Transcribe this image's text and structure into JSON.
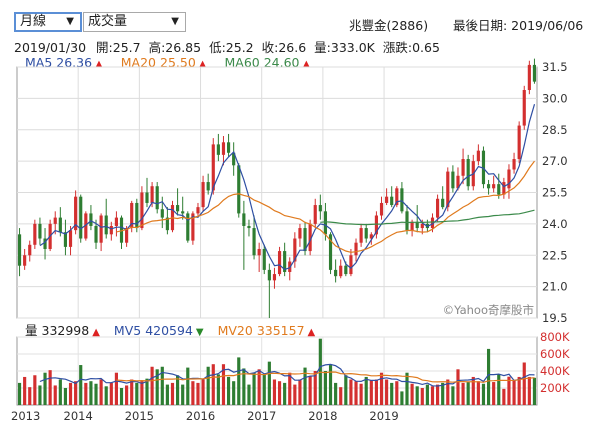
{
  "controls": {
    "period_label": "月線",
    "indicator_label": "成交量"
  },
  "header": {
    "stock": "兆豐金(2886)",
    "last_date_label": "最後日期: 2019/06/06"
  },
  "quote": {
    "date": "2019/01/30",
    "open_label": "開:",
    "open": "25.7",
    "high_label": "高:",
    "high": "26.85",
    "low_label": "低:",
    "low": "25.2",
    "close_label": "收:",
    "close": "26.6",
    "vol_label": "量:",
    "volume": "333.0K",
    "chg_label": "漲跌:",
    "change": "0.65"
  },
  "ma_legend": [
    {
      "label": "MA5",
      "value": "26.36",
      "color": "#2f4fa3",
      "dir": "up"
    },
    {
      "label": "MA20",
      "value": "25.50",
      "color": "#e07b1f",
      "dir": "up"
    },
    {
      "label": "MA60",
      "value": "24.60",
      "color": "#3b8a4a",
      "dir": "up"
    }
  ],
  "vol_legend": [
    {
      "label": "量",
      "value": "332998",
      "color": "#222222",
      "dir": "up"
    },
    {
      "label": "MV5",
      "value": "420594",
      "color": "#2f4fa3",
      "dir": "down"
    },
    {
      "label": "MV20",
      "value": "335157",
      "color": "#e07b1f",
      "dir": "up"
    }
  ],
  "watermark": "©Yahoo奇摩股市",
  "colors": {
    "up": "#d32f2f",
    "down": "#2e7d32",
    "ma5": "#2f4fa3",
    "ma20": "#e07b1f",
    "ma60": "#3b8a4a"
  },
  "chart_data": {
    "type": "candlestick",
    "price_axis": {
      "min": 19.5,
      "max": 31.5,
      "ticks": [
        "19.5",
        "21.0",
        "22.5",
        "24.0",
        "25.5",
        "27.0",
        "28.5",
        "30.0",
        "31.5"
      ]
    },
    "volume_axis": {
      "min": 0,
      "max": 800000,
      "ticks": [
        "200K",
        "400K",
        "600K",
        "800K"
      ]
    },
    "x_axis_labels": [
      "2013",
      "2014",
      "2015",
      "2016",
      "2017",
      "2018",
      "2019"
    ],
    "grid": true,
    "months_start": "2013-01",
    "ohlc": [
      [
        23.5,
        23.8,
        21.5,
        22.0
      ],
      [
        22.0,
        22.8,
        21.8,
        22.5
      ],
      [
        22.5,
        23.2,
        22.2,
        23.0
      ],
      [
        23.0,
        24.2,
        22.8,
        24.0
      ],
      [
        24.0,
        24.3,
        23.0,
        23.3
      ],
      [
        23.3,
        23.8,
        22.3,
        22.8
      ],
      [
        22.8,
        24.2,
        22.7,
        24.0
      ],
      [
        24.0,
        24.6,
        23.5,
        24.3
      ],
      [
        24.3,
        24.8,
        23.4,
        23.6
      ],
      [
        23.6,
        24.2,
        22.5,
        22.9
      ],
      [
        22.9,
        23.9,
        22.5,
        23.7
      ],
      [
        23.7,
        25.6,
        23.5,
        25.3
      ],
      [
        25.3,
        25.4,
        23.1,
        23.3
      ],
      [
        23.3,
        24.6,
        23.2,
        24.5
      ],
      [
        24.5,
        24.9,
        23.7,
        23.9
      ],
      [
        23.9,
        24.2,
        22.8,
        23.1
      ],
      [
        23.1,
        24.5,
        22.7,
        24.4
      ],
      [
        24.4,
        25.2,
        23.3,
        23.5
      ],
      [
        23.5,
        24.1,
        23.2,
        23.9
      ],
      [
        23.9,
        24.6,
        23.4,
        24.3
      ],
      [
        24.3,
        24.4,
        22.8,
        23.1
      ],
      [
        23.1,
        23.9,
        22.9,
        23.8
      ],
      [
        23.8,
        25.1,
        23.6,
        25.0
      ],
      [
        25.0,
        25.2,
        23.6,
        23.8
      ],
      [
        23.8,
        25.8,
        23.7,
        25.5
      ],
      [
        25.5,
        26.2,
        24.8,
        25.0
      ],
      [
        25.0,
        26.0,
        24.8,
        25.8
      ],
      [
        25.8,
        26.0,
        24.5,
        24.7
      ],
      [
        24.7,
        25.3,
        23.8,
        24.3
      ],
      [
        24.3,
        24.8,
        23.5,
        23.7
      ],
      [
        23.7,
        25.1,
        23.6,
        24.9
      ],
      [
        24.9,
        25.7,
        24.4,
        24.6
      ],
      [
        24.6,
        25.3,
        24.2,
        24.5
      ],
      [
        24.5,
        24.6,
        23.1,
        23.2
      ],
      [
        23.2,
        24.6,
        23.0,
        24.5
      ],
      [
        24.5,
        25.0,
        24.4,
        24.8
      ],
      [
        24.8,
        26.3,
        24.6,
        26.0
      ],
      [
        26.0,
        26.4,
        25.4,
        25.6
      ],
      [
        25.6,
        28.1,
        25.4,
        27.8
      ],
      [
        27.8,
        28.3,
        27.0,
        27.3
      ],
      [
        27.3,
        28.2,
        26.8,
        27.9
      ],
      [
        27.9,
        28.3,
        27.2,
        27.4
      ],
      [
        27.4,
        27.9,
        26.3,
        26.8
      ],
      [
        26.8,
        26.9,
        24.3,
        24.5
      ],
      [
        24.5,
        25.1,
        21.8,
        23.9
      ],
      [
        23.9,
        24.2,
        23.4,
        23.8
      ],
      [
        23.8,
        24.4,
        22.3,
        22.5
      ],
      [
        22.5,
        23.1,
        21.7,
        22.8
      ],
      [
        22.8,
        23.0,
        21.6,
        21.8
      ],
      [
        21.8,
        22.1,
        19.5,
        21.3
      ],
      [
        21.3,
        21.9,
        20.9,
        21.6
      ],
      [
        21.6,
        22.9,
        21.5,
        22.7
      ],
      [
        22.7,
        23.1,
        21.5,
        21.7
      ],
      [
        21.7,
        22.4,
        21.3,
        22.2
      ],
      [
        22.2,
        23.6,
        21.9,
        23.3
      ],
      [
        23.3,
        24.0,
        22.9,
        23.8
      ],
      [
        23.8,
        24.1,
        22.5,
        22.7
      ],
      [
        22.7,
        24.2,
        22.5,
        24.0
      ],
      [
        24.0,
        25.2,
        23.8,
        24.9
      ],
      [
        24.9,
        25.4,
        24.2,
        24.6
      ],
      [
        24.6,
        25.0,
        23.2,
        23.5
      ],
      [
        23.5,
        23.6,
        21.6,
        21.8
      ],
      [
        21.8,
        22.3,
        21.2,
        21.5
      ],
      [
        21.5,
        22.3,
        21.4,
        22.0
      ],
      [
        22.0,
        22.2,
        21.5,
        21.6
      ],
      [
        21.6,
        22.8,
        21.5,
        22.5
      ],
      [
        22.5,
        23.3,
        22.2,
        23.1
      ],
      [
        23.1,
        24.0,
        22.9,
        23.8
      ],
      [
        23.8,
        24.0,
        23.1,
        23.3
      ],
      [
        23.3,
        23.6,
        23.0,
        23.5
      ],
      [
        23.5,
        24.6,
        23.3,
        24.4
      ],
      [
        24.4,
        25.3,
        24.2,
        25.0
      ],
      [
        25.0,
        25.7,
        24.9,
        25.3
      ],
      [
        25.3,
        25.8,
        24.8,
        24.9
      ],
      [
        24.9,
        25.8,
        24.8,
        25.7
      ],
      [
        25.7,
        26.0,
        24.5,
        24.6
      ],
      [
        24.6,
        24.9,
        23.5,
        23.7
      ],
      [
        23.7,
        24.2,
        23.4,
        24.1
      ],
      [
        24.1,
        24.9,
        23.6,
        23.8
      ],
      [
        23.8,
        24.2,
        23.5,
        24.0
      ],
      [
        24.0,
        24.2,
        23.6,
        23.8
      ],
      [
        23.8,
        24.5,
        23.6,
        24.3
      ],
      [
        24.3,
        25.4,
        24.1,
        25.2
      ],
      [
        25.2,
        25.8,
        24.7,
        24.8
      ],
      [
        24.8,
        26.7,
        24.6,
        26.5
      ],
      [
        26.5,
        26.8,
        25.5,
        25.7
      ],
      [
        25.7,
        26.7,
        25.6,
        26.3
      ],
      [
        26.3,
        27.6,
        25.9,
        27.1
      ],
      [
        27.1,
        27.3,
        25.6,
        25.8
      ],
      [
        25.8,
        27.3,
        25.6,
        27.0
      ],
      [
        27.0,
        27.8,
        26.8,
        27.5
      ],
      [
        27.5,
        27.7,
        25.7,
        25.9
      ],
      [
        25.9,
        26.1,
        25.4,
        25.7
      ],
      [
        25.7,
        26.3,
        25.5,
        25.9
      ],
      [
        25.9,
        26.4,
        25.2,
        25.4
      ],
      [
        25.4,
        26.2,
        25.2,
        26.0
      ],
      [
        25.7,
        26.85,
        25.2,
        26.6
      ],
      [
        26.6,
        27.4,
        26.4,
        27.1
      ],
      [
        27.1,
        28.9,
        26.9,
        28.7
      ],
      [
        28.7,
        30.6,
        28.5,
        30.4
      ],
      [
        30.4,
        31.8,
        30.2,
        31.6
      ],
      [
        31.6,
        31.9,
        30.7,
        30.8
      ]
    ],
    "volume": [
      260000,
      330000,
      210000,
      350000,
      230000,
      380000,
      410000,
      230000,
      300000,
      200000,
      260000,
      280000,
      470000,
      260000,
      280000,
      250000,
      300000,
      220000,
      260000,
      380000,
      200000,
      230000,
      300000,
      260000,
      280000,
      310000,
      450000,
      420000,
      450000,
      240000,
      260000,
      350000,
      240000,
      440000,
      280000,
      260000,
      300000,
      450000,
      480000,
      360000,
      480000,
      330000,
      280000,
      560000,
      430000,
      240000,
      380000,
      420000,
      360000,
      510000,
      300000,
      280000,
      260000,
      380000,
      240000,
      300000,
      440000,
      340000,
      400000,
      780000,
      400000,
      470000,
      260000,
      210000,
      350000,
      300000,
      280000,
      250000,
      330000,
      290000,
      300000,
      380000,
      300000,
      260000,
      280000,
      160000,
      380000,
      250000,
      220000,
      200000,
      240000,
      220000,
      240000,
      260000,
      300000,
      220000,
      420000,
      260000,
      270000,
      330000,
      280000,
      250000,
      660000,
      270000,
      360000,
      190000,
      333000,
      290000,
      330000,
      500000,
      330000,
      320000
    ]
  }
}
